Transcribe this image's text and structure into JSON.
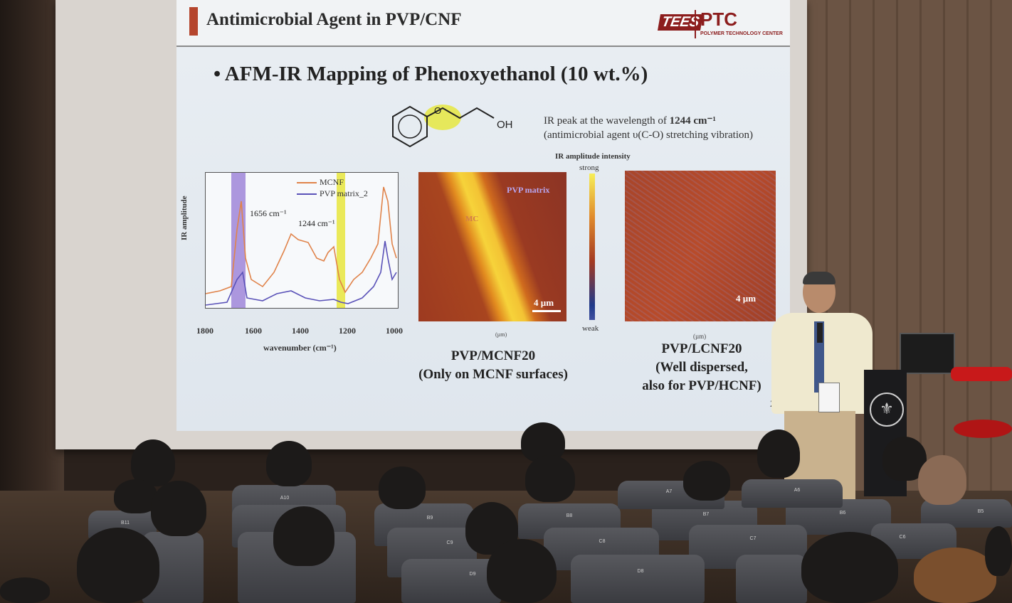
{
  "slide": {
    "title": "Antimicrobial Agent in PVP/CNF",
    "logo_left": "TEES",
    "logo_right": "PTC",
    "logo_subtitle": "POLYMER TECHNOLOGY CENTER",
    "bullet_heading": "• AFM-IR Mapping of Phenoxyethanol (10 wt.%)",
    "molecule_label": "OH",
    "ir_note_line1_prefix": "IR peak at the wavelength of ",
    "ir_note_line1_value": "1244 cm⁻¹",
    "ir_note_line2": "(antimicrobial agent υ(C-O) stretching vibration)",
    "spectrum": {
      "legend": [
        "MCNF",
        "PVP matrix_2"
      ],
      "annotation_1656": "1656 cm⁻¹",
      "annotation_1244": "1244 cm⁻¹",
      "ylabel": "IR amplitude",
      "xlabel": "wavenumber (cm⁻¹)",
      "xticks": [
        "1800",
        "1600",
        "1400",
        "1200",
        "1000"
      ]
    },
    "map_mcnf": {
      "label_pvp": "PVP matrix",
      "label_mc": "MC",
      "scale": "4 µm",
      "unit": "(µm)"
    },
    "colorbar": {
      "title": "IR amplitude intensity",
      "strong": "strong",
      "weak": "weak"
    },
    "map_lcnf": {
      "scale": "4 µm",
      "unit": "(µm)"
    },
    "caption_mcnf_1": "PVP/MCNF20",
    "caption_mcnf_2": "(Only on MCNF surfaces)",
    "caption_lcnf_1": "PVP/LCNF20",
    "caption_lcnf_2": "(Well dispersed,",
    "caption_lcnf_3": "also for PVP/HCNF)",
    "page_number": "23"
  },
  "seats": [
    "A10",
    "B11",
    "B9",
    "B8",
    "B7",
    "B6",
    "A7",
    "A6",
    "B5",
    "C9",
    "C8",
    "C7",
    "C6",
    "D9",
    "D8"
  ],
  "colors": {
    "accent_bar": "#b5452d",
    "logo_red": "#8c1d1d",
    "mcnf_line": "#e0834a",
    "pvp_line": "#5a52b8",
    "band_purple": "#9f86d8",
    "band_yellow": "#e7e63c"
  }
}
